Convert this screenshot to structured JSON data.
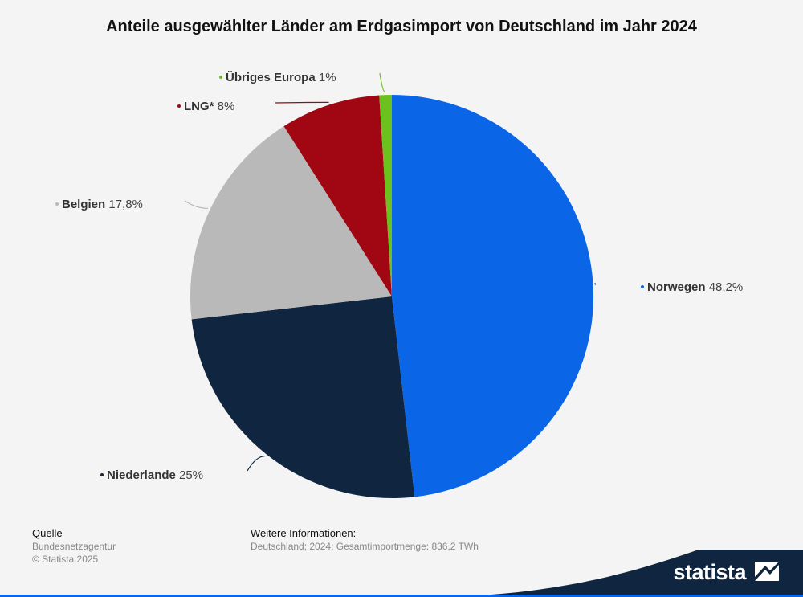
{
  "chart_data": {
    "type": "pie",
    "title": "Anteile ausgewählter Länder am Erdgasimport von Deutschland im Jahr 2024",
    "unit": "%",
    "slices": [
      {
        "name": "Norwegen",
        "value": 48.2,
        "label": "48,2%",
        "color": "#0a66e6"
      },
      {
        "name": "Niederlande",
        "value": 25,
        "label": "25%",
        "color": "#10253f"
      },
      {
        "name": "Belgien",
        "value": 17.8,
        "label": "17,8%",
        "color": "#b9b9b9"
      },
      {
        "name": "LNG*",
        "value": 8,
        "label": "8%",
        "color": "#a00712"
      },
      {
        "name": "Übriges Europa",
        "value": 1,
        "label": "1%",
        "color": "#6cc11e"
      }
    ]
  },
  "footer": {
    "source_heading": "Quelle",
    "source": "Bundesnetzagentur",
    "copyright": "© Statista 2025",
    "info_heading": "Weitere Informationen:",
    "info": "Deutschland; 2024; Gesamtimportmenge: 836,2 TWh"
  },
  "brand": {
    "name": "statista",
    "color": "#0f2540"
  }
}
